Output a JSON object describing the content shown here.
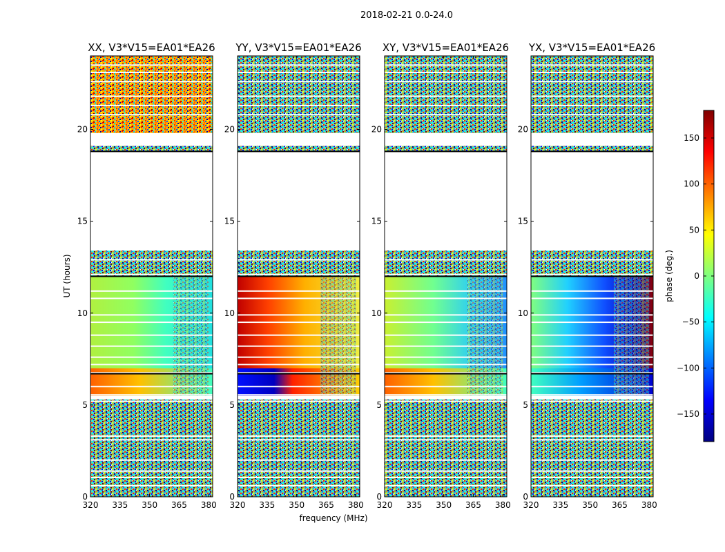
{
  "figure": {
    "suptitle": "2018-02-21 0.0-24.0"
  },
  "chart_data": {
    "type": "heatmap",
    "xlabel": "frequency (MHz)",
    "ylabel": "UT (hours)",
    "xlim": [
      320,
      382
    ],
    "ylim": [
      0,
      24
    ],
    "xticks": [
      320,
      335,
      350,
      365,
      380
    ],
    "yticks": [
      0,
      5,
      10,
      15,
      20
    ],
    "panels": [
      {
        "title": "XX, V3*V15=EA01*EA26",
        "gradient": "xx"
      },
      {
        "title": "YY, V3*V15=EA01*EA26",
        "gradient": "yy"
      },
      {
        "title": "XY, V3*V15=EA01*EA26",
        "gradient": "xy"
      },
      {
        "title": "YX, V3*V15=EA01*EA26",
        "gradient": "yx"
      }
    ],
    "coherent_ut_range": [
      5.5,
      12.0
    ],
    "noisy_ut_ranges": [
      [
        0.0,
        5.3
      ],
      [
        12.0,
        13.4
      ],
      [
        18.8,
        19.1
      ],
      [
        19.8,
        24.0
      ]
    ],
    "blank_ut_ranges": [
      [
        13.4,
        18.8
      ]
    ],
    "gap_lines_ut": [
      0.6,
      1.05,
      1.4,
      2.0,
      3.1,
      3.3,
      5.2,
      5.55,
      6.0,
      6.75,
      7.2,
      7.6,
      8.2,
      8.8,
      9.5,
      9.9,
      10.8,
      11.2,
      12.1,
      12.9,
      19.4,
      20.8,
      21.3,
      21.8,
      22.6,
      23.1,
      23.5
    ],
    "colorbar": {
      "label": "phase (deg.)",
      "range": [
        -180,
        180
      ],
      "ticks": [
        150,
        100,
        50,
        0,
        -50,
        -100,
        -150
      ],
      "tick_labels": [
        "150",
        "100",
        "50",
        "0",
        "−50",
        "−100",
        "−150"
      ],
      "colormap": [
        "#00007f",
        "#0000ff",
        "#007fff",
        "#00ffff",
        "#7fff7f",
        "#ffff00",
        "#ff7f00",
        "#ff0000",
        "#7f0000"
      ]
    }
  }
}
